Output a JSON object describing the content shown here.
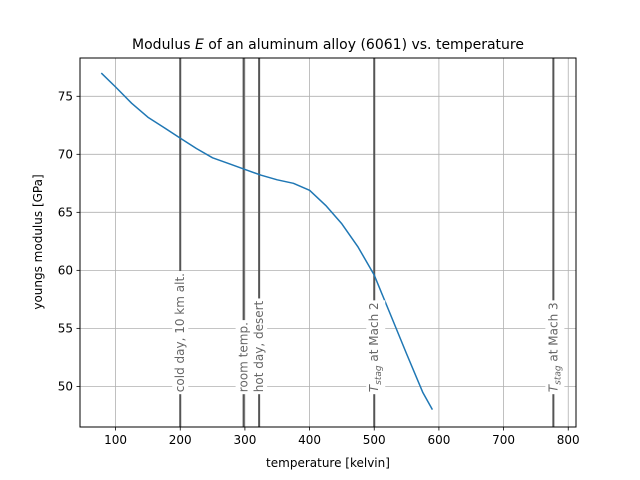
{
  "chart_data": {
    "type": "line",
    "title_prefix": "Modulus ",
    "title_var": "E",
    "title_suffix": " of an aluminum alloy (6061) vs. temperature",
    "xlabel": "temperature [kelvin]",
    "ylabel": "youngs modulus [GPa]",
    "xlim": [
      45,
      812
    ],
    "ylim": [
      46.5,
      78.3
    ],
    "xticks": [
      100,
      200,
      300,
      400,
      500,
      600,
      700,
      800
    ],
    "yticks": [
      50,
      55,
      60,
      65,
      70,
      75
    ],
    "grid": true,
    "series": [
      {
        "color": "#1f77b4",
        "x": [
          78,
          100,
          125,
          150,
          175,
          200,
          225,
          250,
          275,
          300,
          325,
          350,
          375,
          400,
          425,
          450,
          475,
          500,
          525,
          550,
          575,
          590
        ],
        "y": [
          77.0,
          75.8,
          74.4,
          73.2,
          72.3,
          71.4,
          70.5,
          69.7,
          69.2,
          68.7,
          68.2,
          67.8,
          67.5,
          66.9,
          65.6,
          64.0,
          62.0,
          59.6,
          56.2,
          52.8,
          49.5,
          48.0
        ]
      }
    ],
    "vlines": [
      {
        "x": 200,
        "label": "cold day, 10 km alt."
      },
      {
        "x": 298,
        "label": "room temp."
      },
      {
        "x": 322,
        "label": "hot day, desert"
      },
      {
        "x": 500,
        "label_sym": "T",
        "label_sub": "stag",
        "label_rest": " at Mach 2"
      },
      {
        "x": 777,
        "label_sym": "T",
        "label_sub": "stag",
        "label_rest": " at Mach 3"
      }
    ],
    "vline_color": "#555555"
  }
}
